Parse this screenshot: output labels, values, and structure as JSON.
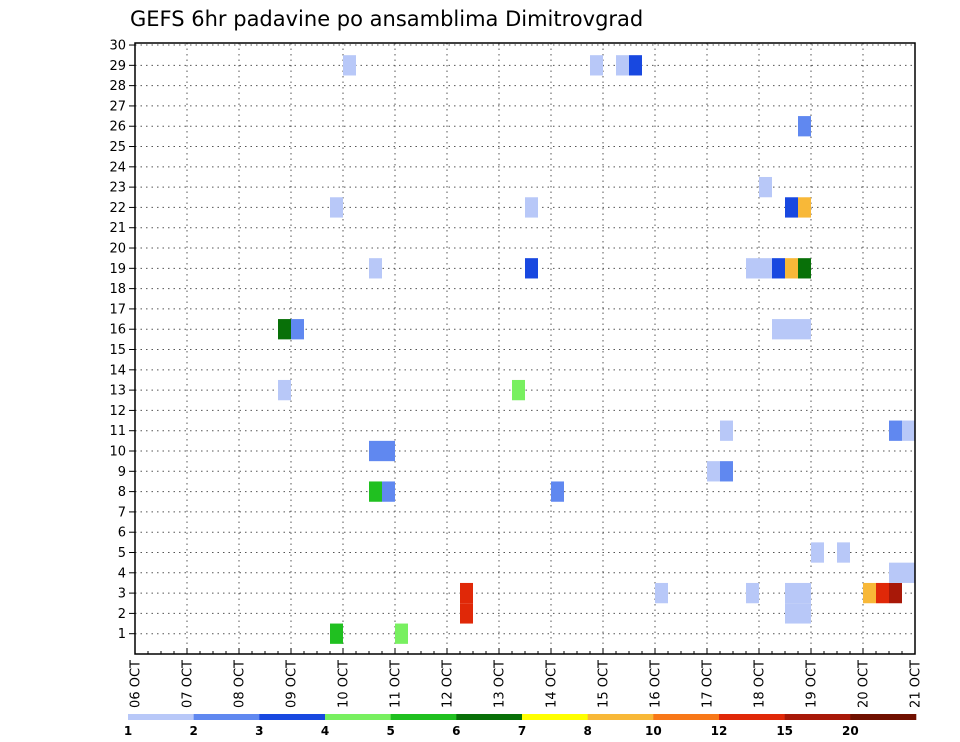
{
  "chart_data": {
    "type": "heatmap",
    "title": "GEFS 6hr padavine po ansamblima Dimitrovgrad",
    "xlabel": "",
    "ylabel": "",
    "x_tick_labels": [
      "06 OCT",
      "07 OCT",
      "08 OCT",
      "09 OCT",
      "10 OCT",
      "11 OCT",
      "12 OCT",
      "13 OCT",
      "14 OCT",
      "15 OCT",
      "16 OCT",
      "17 OCT",
      "18 OCT",
      "19 OCT",
      "20 OCT",
      "21 OCT"
    ],
    "y_tick_labels": [
      "1",
      "2",
      "3",
      "4",
      "5",
      "6",
      "7",
      "8",
      "9",
      "10",
      "11",
      "12",
      "13",
      "14",
      "15",
      "16",
      "17",
      "18",
      "19",
      "20",
      "21",
      "22",
      "23",
      "24",
      "25",
      "26",
      "27",
      "28",
      "29",
      "30"
    ],
    "x_range_steps": [
      0,
      60
    ],
    "y_range": [
      0,
      30
    ],
    "grid": true,
    "colorbar": {
      "labels": [
        "1",
        "2",
        "3",
        "4",
        "5",
        "6",
        "7",
        "8",
        "10",
        "12",
        "15",
        "20"
      ],
      "colors": [
        "#b8c8f8",
        "#6088f0",
        "#1848e0",
        "#78f060",
        "#20c020",
        "#087008",
        "#ffff00",
        "#f8b838",
        "#f87818",
        "#e02808",
        "#a81808",
        "#701000"
      ]
    },
    "cells": [
      {
        "t": 16,
        "m": 1,
        "c": 5
      },
      {
        "t": 21,
        "m": 1,
        "c": 4
      },
      {
        "t": 26,
        "m": 2,
        "c": 10
      },
      {
        "t": 26,
        "m": 3,
        "c": 10
      },
      {
        "t": 41,
        "m": 3,
        "c": 1
      },
      {
        "t": 48,
        "m": 3,
        "c": 1
      },
      {
        "t": 51,
        "m": 3,
        "c": 1
      },
      {
        "t": 52,
        "m": 3,
        "c": 1
      },
      {
        "t": 52,
        "m": 2,
        "c": 1
      },
      {
        "t": 51,
        "m": 2,
        "c": 1
      },
      {
        "t": 57,
        "m": 3,
        "c": 8
      },
      {
        "t": 58,
        "m": 3,
        "c": 10
      },
      {
        "t": 59,
        "m": 3,
        "c": 11
      },
      {
        "t": 59,
        "m": 4,
        "c": 1
      },
      {
        "t": 60,
        "m": 4,
        "c": 1
      },
      {
        "t": 53,
        "m": 5,
        "c": 1
      },
      {
        "t": 55,
        "m": 5,
        "c": 1
      },
      {
        "t": 19,
        "m": 8,
        "c": 5
      },
      {
        "t": 20,
        "m": 8,
        "c": 2
      },
      {
        "t": 33,
        "m": 8,
        "c": 2
      },
      {
        "t": 45,
        "m": 9,
        "c": 1
      },
      {
        "t": 46,
        "m": 9,
        "c": 2
      },
      {
        "t": 19,
        "m": 10,
        "c": 2
      },
      {
        "t": 20,
        "m": 10,
        "c": 2
      },
      {
        "t": 46,
        "m": 11,
        "c": 1
      },
      {
        "t": 59,
        "m": 11,
        "c": 2
      },
      {
        "t": 60,
        "m": 11,
        "c": 1
      },
      {
        "t": 12,
        "m": 13,
        "c": 1
      },
      {
        "t": 30,
        "m": 13,
        "c": 4
      },
      {
        "t": 12,
        "m": 16,
        "c": 6
      },
      {
        "t": 13,
        "m": 16,
        "c": 2
      },
      {
        "t": 50,
        "m": 16,
        "c": 1
      },
      {
        "t": 51,
        "m": 16,
        "c": 1
      },
      {
        "t": 52,
        "m": 16,
        "c": 1
      },
      {
        "t": 19,
        "m": 19,
        "c": 1
      },
      {
        "t": 31,
        "m": 19,
        "c": 3
      },
      {
        "t": 48,
        "m": 19,
        "c": 1
      },
      {
        "t": 49,
        "m": 19,
        "c": 1
      },
      {
        "t": 50,
        "m": 19,
        "c": 3
      },
      {
        "t": 51,
        "m": 19,
        "c": 8
      },
      {
        "t": 52,
        "m": 19,
        "c": 6
      },
      {
        "t": 16,
        "m": 22,
        "c": 1
      },
      {
        "t": 31,
        "m": 22,
        "c": 1
      },
      {
        "t": 51,
        "m": 22,
        "c": 3
      },
      {
        "t": 52,
        "m": 22,
        "c": 8
      },
      {
        "t": 49,
        "m": 23,
        "c": 1
      },
      {
        "t": 52,
        "m": 26,
        "c": 2
      },
      {
        "t": 17,
        "m": 29,
        "c": 1
      },
      {
        "t": 36,
        "m": 29,
        "c": 1
      },
      {
        "t": 38,
        "m": 29,
        "c": 1
      },
      {
        "t": 39,
        "m": 29,
        "c": 3
      }
    ]
  }
}
